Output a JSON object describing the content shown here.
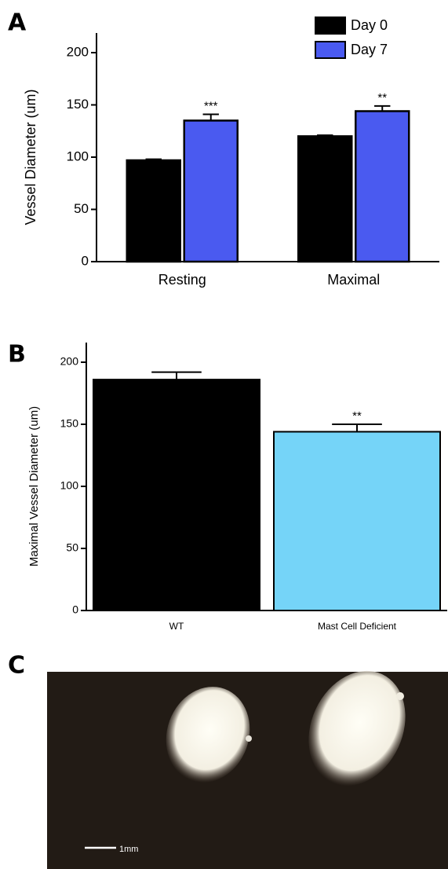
{
  "chart_data": [
    {
      "type": "bar",
      "panel": "A",
      "y_label": "Vessel Diameter (um)",
      "categories": [
        "Resting",
        "Maximal"
      ],
      "series": [
        {
          "name": "Day 0",
          "color": "#000000",
          "values": [
            97,
            120
          ],
          "errors": [
            1,
            1
          ]
        },
        {
          "name": "Day 7",
          "color": "#4a5af0",
          "values": [
            135,
            144
          ],
          "errors": [
            6,
            5
          ],
          "significance": [
            "***",
            "**"
          ]
        }
      ],
      "ylim": [
        0,
        200
      ],
      "yticks": [
        0,
        50,
        100,
        150,
        200
      ],
      "legend": "upper right"
    },
    {
      "type": "bar",
      "panel": "B",
      "y_label": "Maximal Vessel Diameter (um)",
      "categories": [
        "WT",
        "Mast Cell Deficient"
      ],
      "series": [
        {
          "colors": [
            "#000000",
            "#75d4f8"
          ],
          "values": [
            186,
            144
          ],
          "errors": [
            6,
            6
          ],
          "significance": [
            null,
            "**"
          ]
        }
      ],
      "ylim": [
        0,
        200
      ],
      "yticks": [
        0,
        50,
        100,
        150,
        200
      ]
    }
  ],
  "photo": {
    "panel": "C",
    "scale_bar": "1mm"
  }
}
